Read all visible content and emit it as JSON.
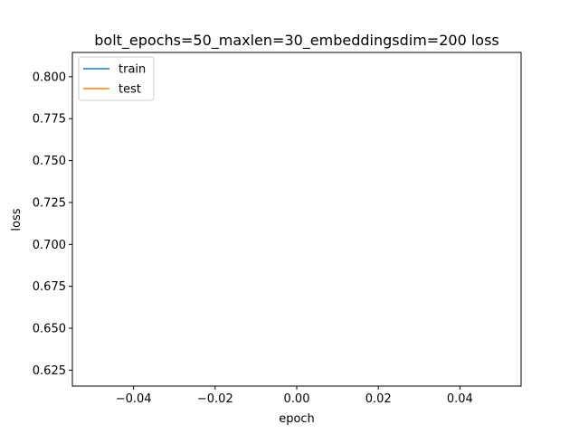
{
  "chart_data": {
    "type": "line",
    "title": "bolt_epochs=50_maxlen=30_embeddingsdim=200 loss",
    "xlabel": "epoch",
    "ylabel": "loss",
    "xlim": [
      -0.055,
      0.055
    ],
    "ylim": [
      0.6155,
      0.8145
    ],
    "x_ticks": [
      -0.04,
      -0.02,
      0.0,
      0.02,
      0.04
    ],
    "x_tick_labels": [
      "−0.04",
      "−0.02",
      "0.00",
      "0.02",
      "0.04"
    ],
    "y_ticks": [
      0.625,
      0.65,
      0.675,
      0.7,
      0.725,
      0.75,
      0.775,
      0.8
    ],
    "y_tick_labels": [
      "0.625",
      "0.650",
      "0.675",
      "0.700",
      "0.725",
      "0.750",
      "0.775",
      "0.800"
    ],
    "grid": false,
    "legend_position": "upper left",
    "series": [
      {
        "name": "train",
        "color": "#1f77b4",
        "x": [],
        "y": []
      },
      {
        "name": "test",
        "color": "#ff7f0e",
        "x": [],
        "y": []
      }
    ]
  }
}
